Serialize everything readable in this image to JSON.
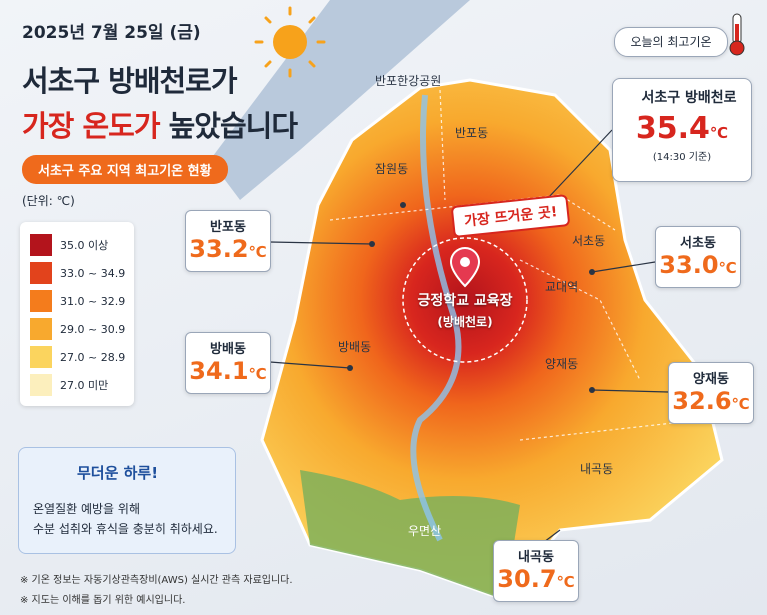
{
  "header": {
    "date": "2025년 7월 25일 (금)",
    "title_line1": "서초구 방배천로가",
    "title_line2_highlight": "가장 온도가",
    "title_line2_rest": "높았습니다",
    "badge": "서초구 주요 지역 최고기온 현황",
    "unit_note": "(단위: ℃)"
  },
  "legend": {
    "items": [
      {
        "label": "35.0 이상",
        "color": "#b3141c"
      },
      {
        "label": "33.0 ~ 34.9",
        "color": "#e2431c"
      },
      {
        "label": "31.0 ~ 32.9",
        "color": "#f47c1c"
      },
      {
        "label": "29.0 ~ 30.9",
        "color": "#f8a92e"
      },
      {
        "label": "27.0 ~ 28.9",
        "color": "#fbd45e"
      },
      {
        "label": "27.0 미만",
        "color": "#fcefbd"
      }
    ]
  },
  "today_max": {
    "label": "오늘의 최고기온",
    "place": "서초구 방배천로",
    "value": "35.4",
    "unit": "℃",
    "time": "(14:30 기준)"
  },
  "hotspot": {
    "tag": "가장 뜨거운 곳!",
    "name": "긍정학교 교육장",
    "sub": "(방배천로)"
  },
  "map_labels": [
    "반포한강공원",
    "반포동",
    "잠원동",
    "서초동",
    "교대역",
    "방배동",
    "양재동",
    "내곡동",
    "우면산"
  ],
  "callouts": [
    {
      "name": "반포동",
      "value": "33.2"
    },
    {
      "name": "서초동",
      "value": "33.0"
    },
    {
      "name": "방배동",
      "value": "34.1"
    },
    {
      "name": "양재동",
      "value": "32.6"
    },
    {
      "name": "내곡동",
      "value": "30.7"
    }
  ],
  "tip": {
    "title": "무더운 하루!",
    "lines": [
      "온열질환 예방을 위해",
      "수분 섭취와 휴식을 충분히 취하세요."
    ]
  },
  "footnotes": [
    "※ 기온 정보는 자동기상관측장비(AWS) 실시간 관측 자료입니다.",
    "※ 지도는 이해를 돕기 위한 예시입니다."
  ]
}
